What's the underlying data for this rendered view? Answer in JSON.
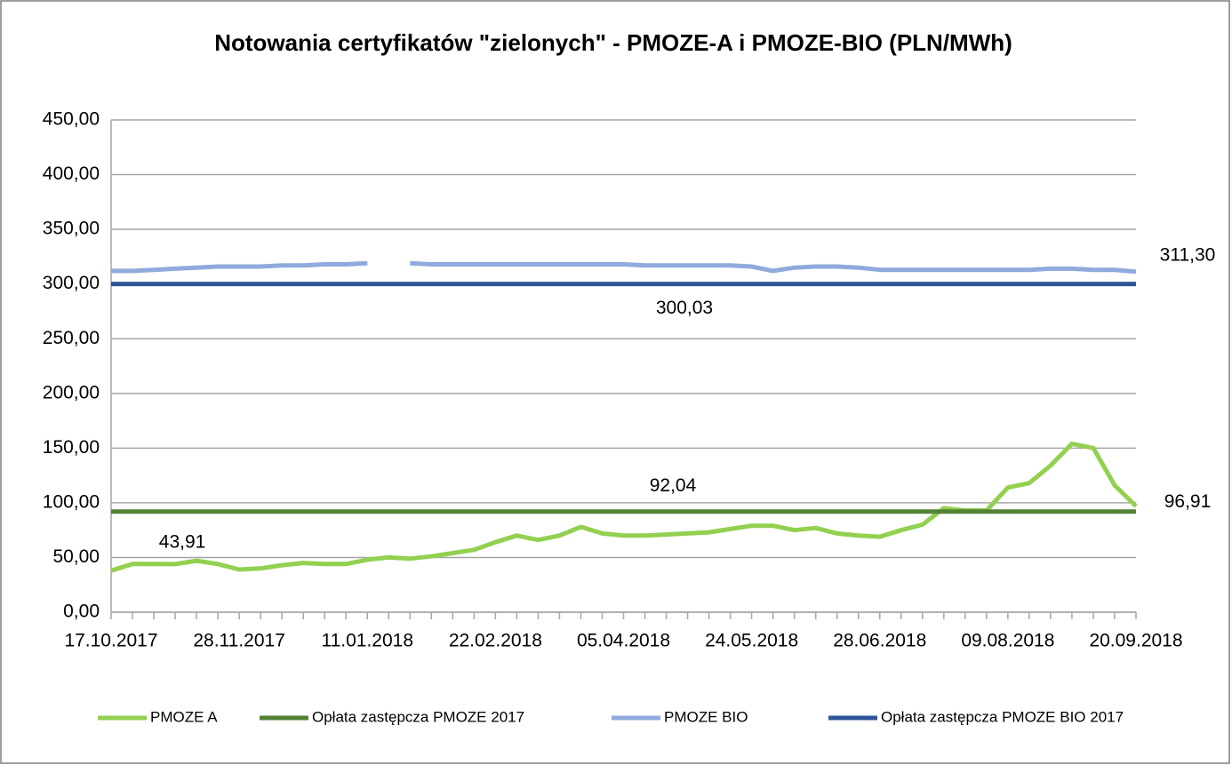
{
  "chart_data": {
    "type": "line",
    "title": "Notowania certyfikatów \"zielonych\" - PMOZE-A i PMOZE-BIO  (PLN/MWh)",
    "categories": [
      "17.10.2017",
      null,
      null,
      null,
      null,
      null,
      "28.11.2017",
      null,
      null,
      null,
      null,
      null,
      "11.01.2018",
      null,
      null,
      null,
      null,
      null,
      "22.02.2018",
      null,
      null,
      null,
      null,
      null,
      "05.04.2018",
      null,
      null,
      null,
      null,
      null,
      "24.05.2018",
      null,
      null,
      null,
      null,
      null,
      "28.06.2018",
      null,
      null,
      null,
      null,
      null,
      "09.08.2018",
      null,
      null,
      null,
      null,
      null,
      "20.09.2018"
    ],
    "series": [
      {
        "name": "PMOZE A",
        "color": "#92d050",
        "values": [
          38,
          44,
          44,
          43.91,
          47,
          44,
          39,
          40,
          43,
          45,
          44,
          44,
          48,
          50,
          49,
          51,
          54,
          57,
          64,
          70,
          66,
          70,
          78,
          72,
          70,
          70,
          71,
          72,
          73,
          76,
          79,
          79,
          75,
          77,
          72,
          70,
          69,
          75,
          80,
          95,
          93,
          93,
          114,
          118,
          134,
          154,
          150,
          116,
          96.91
        ],
        "value_labels": [
          null,
          null,
          null,
          "43,91",
          null,
          null,
          null,
          null,
          null,
          null,
          null,
          null,
          null,
          null,
          null,
          null,
          null,
          null,
          null,
          null,
          null,
          null,
          null,
          null,
          null,
          null,
          null,
          null,
          null,
          null,
          null,
          null,
          null,
          null,
          null,
          null,
          null,
          null,
          null,
          null,
          null,
          null,
          null,
          null,
          null,
          null,
          null,
          null,
          "96,91"
        ]
      },
      {
        "name": "Opłata zastępcza PMOZE 2017",
        "color": "#548235",
        "value": 92.04,
        "value_label": "92,04"
      },
      {
        "name": "PMOZE BIO",
        "color": "#8faadc",
        "values": [
          312,
          312,
          313,
          314,
          315,
          316,
          316,
          316,
          317,
          317,
          318,
          318,
          319,
          null,
          319,
          318,
          318,
          318,
          318,
          318,
          318,
          318,
          318,
          318,
          318,
          317,
          317,
          317,
          317,
          317,
          316,
          312,
          315,
          316,
          316,
          315,
          313,
          313,
          313,
          313,
          313,
          313,
          313,
          313,
          314,
          314,
          313,
          313,
          311.3
        ],
        "value_labels": [
          null,
          null,
          null,
          null,
          null,
          null,
          null,
          null,
          null,
          null,
          null,
          null,
          null,
          null,
          null,
          null,
          null,
          null,
          null,
          null,
          null,
          null,
          null,
          null,
          null,
          null,
          null,
          null,
          null,
          null,
          null,
          null,
          null,
          null,
          null,
          null,
          null,
          null,
          null,
          null,
          null,
          null,
          null,
          null,
          null,
          null,
          null,
          null,
          "311,30"
        ]
      },
      {
        "name": "Opłata zastępcza PMOZE BIO 2017",
        "color": "#2f5597",
        "value": 300.03,
        "value_label": "300,03"
      }
    ],
    "ylim": [
      0,
      450
    ],
    "yticks": [
      {
        "value": 0,
        "label": "0,00"
      },
      {
        "value": 50,
        "label": "50,00"
      },
      {
        "value": 100,
        "label": "100,00"
      },
      {
        "value": 150,
        "label": "150,00"
      },
      {
        "value": 200,
        "label": "200,00"
      },
      {
        "value": 250,
        "label": "250,00"
      },
      {
        "value": 300,
        "label": "300,00"
      },
      {
        "value": 350,
        "label": "350,00"
      },
      {
        "value": 400,
        "label": "400,00"
      },
      {
        "value": 450,
        "label": "450,00"
      }
    ],
    "grid": true,
    "legend": "bottom"
  }
}
